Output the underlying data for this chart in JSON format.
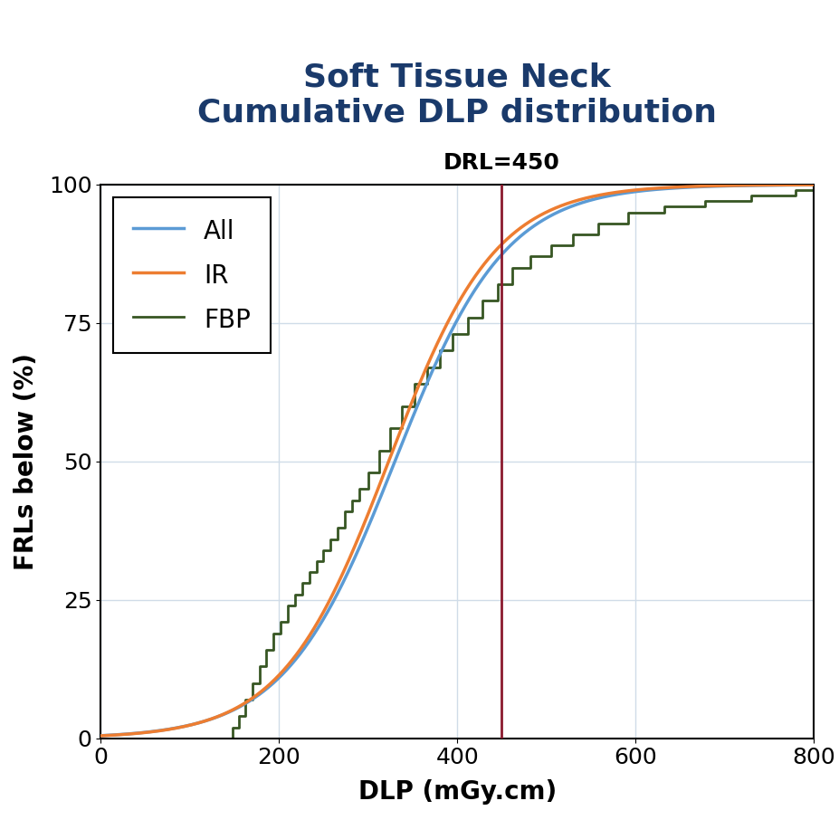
{
  "title_line1": "Soft Tissue Neck",
  "title_line2": "Cumulative DLP distribution",
  "title_color": "#1a3a6b",
  "drl_value": 450,
  "drl_label": "DRL=450",
  "drl_color": "#8b1a2e",
  "xlabel": "DLP (mGy.cm)",
  "ylabel": "FRLs below (%)",
  "xlim": [
    0,
    800
  ],
  "ylim": [
    0,
    100
  ],
  "xticks": [
    0,
    200,
    400,
    600,
    800
  ],
  "yticks": [
    0,
    25,
    50,
    75,
    100
  ],
  "grid_color": "#d0dce8",
  "background_color": "#ffffff",
  "line_all_color": "#5b9bd5",
  "line_ir_color": "#ed7d31",
  "line_fbp_color": "#375623",
  "legend_labels": [
    "All",
    "IR",
    "FBP"
  ],
  "title_fontsize": 26,
  "axis_label_fontsize": 20,
  "tick_fontsize": 18,
  "drl_fontsize": 18,
  "legend_fontsize": 20,
  "fbp_x": [
    0,
    140,
    148,
    155,
    162,
    170,
    178,
    186,
    194,
    202,
    210,
    218,
    226,
    234,
    242,
    250,
    258,
    266,
    274,
    282,
    290,
    300,
    312,
    325,
    338,
    352,
    366,
    380,
    395,
    412,
    428,
    445,
    462,
    482,
    505,
    530,
    558,
    592,
    632,
    678,
    730,
    780,
    800
  ],
  "fbp_y": [
    0,
    0,
    2,
    4,
    7,
    10,
    13,
    16,
    19,
    21,
    24,
    26,
    28,
    30,
    32,
    34,
    36,
    38,
    41,
    43,
    45,
    48,
    52,
    56,
    60,
    64,
    67,
    70,
    73,
    76,
    79,
    82,
    85,
    87,
    89,
    91,
    93,
    95,
    96,
    97,
    98,
    99,
    100
  ]
}
